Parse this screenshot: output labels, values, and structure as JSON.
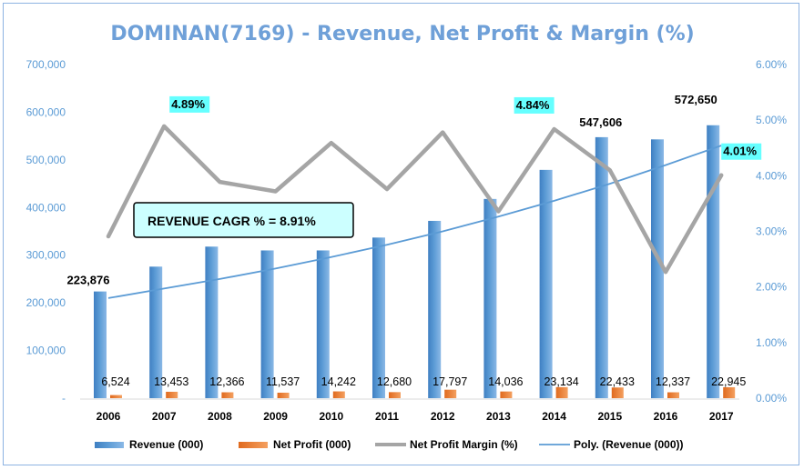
{
  "chart_data": {
    "type": "bar",
    "title": "DOMINAN(7169) - Revenue, Net Profit & Margin (%)",
    "categories": [
      "2006",
      "2007",
      "2008",
      "2009",
      "2010",
      "2011",
      "2012",
      "2013",
      "2014",
      "2015",
      "2016",
      "2017"
    ],
    "series": [
      {
        "name": "Revenue (000)",
        "type": "bar",
        "axis": "left",
        "color": "#5b9bd5",
        "values": [
          223876,
          276000,
          318000,
          310000,
          310000,
          337000,
          372000,
          418000,
          479000,
          547606,
          543000,
          572650
        ]
      },
      {
        "name": "Net Profit (000)",
        "type": "bar",
        "axis": "left",
        "color": "#ed7d31",
        "values": [
          6524,
          13453,
          12366,
          11537,
          14242,
          12680,
          17797,
          14036,
          23134,
          22433,
          12337,
          22945
        ]
      },
      {
        "name": "Net Profit Margin (%)",
        "type": "line",
        "axis": "right",
        "color": "#a5a5a5",
        "values": [
          2.91,
          4.89,
          3.89,
          3.72,
          4.59,
          3.76,
          4.78,
          3.36,
          4.84,
          4.1,
          2.27,
          4.01
        ]
      },
      {
        "name": "Poly. (Revenue (000))",
        "type": "trendline",
        "axis": "left",
        "color": "#5b9bd5",
        "values": [
          210000,
          230000,
          250000,
          272000,
          296000,
          322000,
          350000,
          381000,
          414000,
          450000,
          489000,
          530000
        ]
      }
    ],
    "ylim_left": [
      0,
      700000
    ],
    "yticks_left": [
      "-",
      "100,000",
      "200,000",
      "300,000",
      "400,000",
      "500,000",
      "600,000",
      "700,000"
    ],
    "ylim_right": [
      0,
      6
    ],
    "yticks_right": [
      "0.00%",
      "1.00%",
      "2.00%",
      "3.00%",
      "4.00%",
      "5.00%",
      "6.00%"
    ],
    "revenue_labels": [
      {
        "index": 0,
        "text": "223,876"
      },
      {
        "index": 9,
        "text": "547,606"
      },
      {
        "index": 11,
        "text": "572,650"
      }
    ],
    "net_profit_labels": [
      "6,524",
      "13,453",
      "12,366",
      "11,537",
      "14,242",
      "12,680",
      "17,797",
      "14,036",
      "23,134",
      "22,433",
      "12,337",
      "22,945"
    ],
    "margin_labels": [
      {
        "index": 1,
        "text": "4.89%"
      },
      {
        "index": 8,
        "text": "4.84%"
      },
      {
        "index": 11,
        "text": "4.01%"
      }
    ],
    "annotation": "REVENUE CAGR % = 8.91%",
    "legend": [
      "Revenue (000)",
      "Net Profit (000)",
      "Net Profit Margin (%)",
      "Poly. (Revenue (000))"
    ],
    "legend_position": "bottom",
    "grid": false
  }
}
